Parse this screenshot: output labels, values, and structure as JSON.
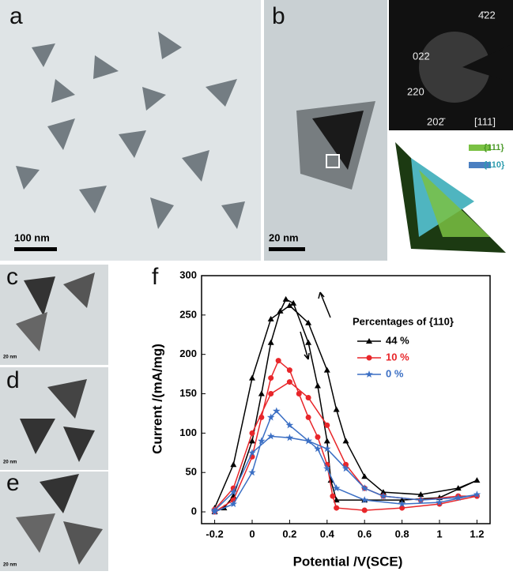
{
  "panels": {
    "a": {
      "label": "a",
      "scale_bar": "100 nm"
    },
    "b": {
      "label": "b",
      "scale_bar": "20 nm",
      "saed": [
        "022",
        "4̄22",
        "220",
        "202̄",
        "[111]"
      ],
      "facets": [
        "{111}",
        "{110}"
      ]
    },
    "c": {
      "label": "c",
      "scale_bar": "20 nm"
    },
    "d": {
      "label": "d",
      "scale_bar": "20 nm"
    },
    "e": {
      "label": "e",
      "scale_bar": "20 nm"
    },
    "f": {
      "label": "f"
    }
  },
  "chart_data": {
    "type": "line",
    "x_label": "Potential /V(SCE)",
    "y_label": "Current /(mA/mg)",
    "legend_title": "Percentages of {110}",
    "xlim": [
      -0.27,
      1.27
    ],
    "ylim": [
      -15,
      300
    ],
    "xticks": [
      -0.2,
      0.0,
      0.2,
      0.4,
      0.6,
      0.8,
      1.0,
      1.2
    ],
    "yticks": [
      0,
      50,
      100,
      150,
      200,
      250,
      300
    ],
    "series": [
      {
        "name": "44 %",
        "color": "#000000",
        "marker": "triangle",
        "x": [
          -0.2,
          -0.15,
          -0.1,
          0,
          0.05,
          0.1,
          0.15,
          0.18,
          0.22,
          0.3,
          0.35,
          0.4,
          0.42,
          0.45,
          0.6,
          0.8,
          1.0,
          1.2,
          1.1,
          0.9,
          0.7,
          0.6,
          0.5,
          0.45,
          0.4,
          0.3,
          0.2,
          0.1,
          0,
          -0.1,
          -0.2
        ],
        "values": [
          0,
          5,
          20,
          90,
          150,
          215,
          255,
          270,
          265,
          215,
          160,
          90,
          40,
          15,
          15,
          15,
          18,
          40,
          30,
          22,
          25,
          45,
          90,
          130,
          180,
          240,
          262,
          245,
          170,
          60,
          5
        ]
      },
      {
        "name": "10 %",
        "color": "#e8262a",
        "marker": "circle",
        "x": [
          -0.2,
          -0.1,
          0,
          0.05,
          0.1,
          0.14,
          0.2,
          0.25,
          0.3,
          0.35,
          0.4,
          0.43,
          0.45,
          0.6,
          0.8,
          1.0,
          1.2,
          1.1,
          0.9,
          0.7,
          0.6,
          0.5,
          0.4,
          0.3,
          0.2,
          0.1,
          0,
          -0.1,
          -0.2
        ],
        "values": [
          0,
          15,
          70,
          120,
          170,
          192,
          180,
          150,
          120,
          95,
          60,
          20,
          5,
          2,
          5,
          10,
          20,
          20,
          15,
          20,
          30,
          60,
          110,
          145,
          165,
          150,
          100,
          30,
          3
        ]
      },
      {
        "name": "0 %",
        "color": "#3b6fc4",
        "marker": "star",
        "x": [
          -0.2,
          -0.1,
          0,
          0.05,
          0.1,
          0.13,
          0.2,
          0.3,
          0.35,
          0.4,
          0.45,
          0.6,
          0.8,
          1.0,
          1.2,
          1.1,
          0.9,
          0.7,
          0.6,
          0.5,
          0.4,
          0.3,
          0.2,
          0.1,
          0,
          -0.1,
          -0.2
        ],
        "values": [
          0,
          10,
          50,
          90,
          120,
          128,
          110,
          90,
          80,
          55,
          30,
          15,
          10,
          12,
          22,
          18,
          15,
          20,
          30,
          55,
          80,
          90,
          94,
          96,
          75,
          25,
          2
        ]
      }
    ]
  }
}
